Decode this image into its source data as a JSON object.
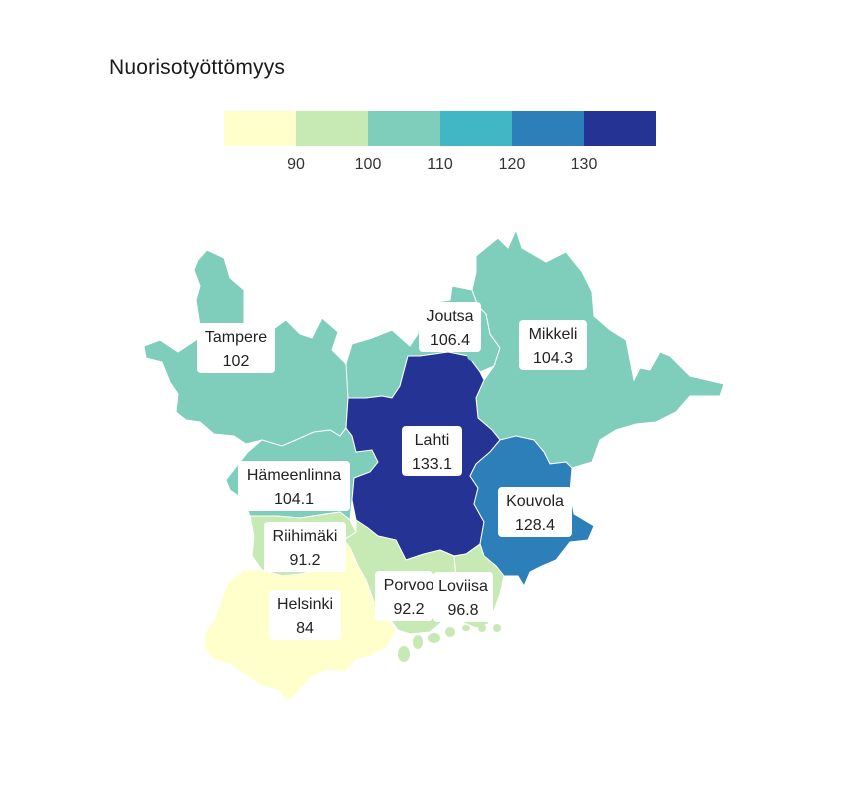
{
  "map": {
    "title": "Nuorisotyöttömyys"
  },
  "legend": {
    "ticks": [
      "90",
      "100",
      "110",
      "120",
      "130"
    ],
    "bins": [
      {
        "from": null,
        "to": 90,
        "color": "#ffffcc"
      },
      {
        "from": 90,
        "to": 100,
        "color": "#c7e9b4"
      },
      {
        "from": 100,
        "to": 110,
        "color": "#7fcdbb"
      },
      {
        "from": 110,
        "to": 120,
        "color": "#41b6c4"
      },
      {
        "from": 120,
        "to": 130,
        "color": "#2c7fb8"
      },
      {
        "from": 130,
        "to": null,
        "color": "#253494"
      }
    ]
  },
  "regions": [
    {
      "name": "Tampere",
      "value": 102,
      "value_label": "102"
    },
    {
      "name": "Joutsa",
      "value": 106.4,
      "value_label": "106.4"
    },
    {
      "name": "Mikkeli",
      "value": 104.3,
      "value_label": "104.3"
    },
    {
      "name": "Lahti",
      "value": 133.1,
      "value_label": "133.1"
    },
    {
      "name": "Hämeenlinna",
      "value": 104.1,
      "value_label": "104.1"
    },
    {
      "name": "Kouvola",
      "value": 128.4,
      "value_label": "128.4"
    },
    {
      "name": "Riihimäki",
      "value": 91.2,
      "value_label": "91.2"
    },
    {
      "name": "Porvoo",
      "value": 92.2,
      "value_label": "92.2"
    },
    {
      "name": "Loviisa",
      "value": 96.8,
      "value_label": "96.8"
    },
    {
      "name": "Helsinki",
      "value": 84,
      "value_label": "84"
    }
  ]
}
